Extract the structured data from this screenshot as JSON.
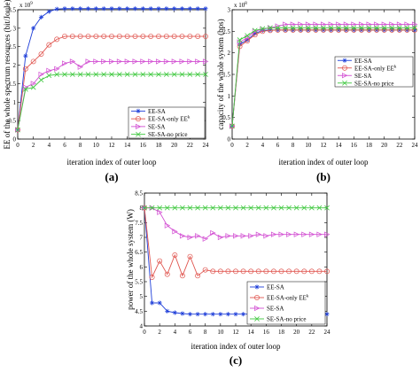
{
  "chart_data": [
    {
      "panel_label": "(a)",
      "type": "line",
      "xlabel": "iteration index of outer loop",
      "ylabel": "EE of the whole spectrum resources (bit/Joule)",
      "y_multiplier": "x 10",
      "y_exponent": "9",
      "xlim": [
        0,
        24
      ],
      "ylim": [
        0,
        3.5
      ],
      "xticks": [
        "0",
        "2",
        "4",
        "6",
        "8",
        "10",
        "12",
        "14",
        "16",
        "18",
        "20",
        "22",
        "24"
      ],
      "yticks": [
        "0",
        "0.5",
        "1",
        "1.5",
        "2",
        "2.5",
        "3",
        "3.5"
      ],
      "legend_location": "lower-right",
      "x": [
        0,
        1,
        2,
        3,
        4,
        5,
        6,
        7,
        8,
        9,
        10,
        11,
        12,
        13,
        14,
        15,
        16,
        17,
        18,
        19,
        20,
        21,
        22,
        23,
        24
      ],
      "series": [
        {
          "name": "EE-SA",
          "color": "#1f3fd9",
          "marker": "star",
          "values": [
            0.25,
            2.25,
            3.0,
            3.3,
            3.45,
            3.52,
            3.53,
            3.53,
            3.53,
            3.53,
            3.53,
            3.53,
            3.53,
            3.53,
            3.53,
            3.53,
            3.53,
            3.53,
            3.53,
            3.53,
            3.53,
            3.53,
            3.53,
            3.53,
            3.53
          ]
        },
        {
          "name": "EE-SA-only EE",
          "name_superscript": "k",
          "color": "#e0554f",
          "marker": "circle",
          "values": [
            0.25,
            1.9,
            2.1,
            2.3,
            2.55,
            2.7,
            2.78,
            2.78,
            2.78,
            2.78,
            2.78,
            2.78,
            2.78,
            2.78,
            2.78,
            2.78,
            2.78,
            2.78,
            2.78,
            2.78,
            2.78,
            2.78,
            2.78,
            2.78,
            2.78
          ]
        },
        {
          "name": "SE-SA",
          "color": "#d24fd2",
          "marker": "triangle-right",
          "values": [
            0.25,
            1.4,
            1.5,
            1.75,
            1.85,
            1.9,
            2.05,
            2.1,
            1.95,
            2.1,
            2.1,
            2.1,
            2.1,
            2.1,
            2.1,
            2.1,
            2.1,
            2.1,
            2.1,
            2.1,
            2.1,
            2.1,
            2.1,
            2.1,
            2.1
          ]
        },
        {
          "name": "SE-SA-no price",
          "color": "#3fc83f",
          "marker": "x",
          "values": [
            0.25,
            1.35,
            1.4,
            1.6,
            1.72,
            1.75,
            1.75,
            1.75,
            1.75,
            1.75,
            1.75,
            1.75,
            1.75,
            1.75,
            1.75,
            1.75,
            1.75,
            1.75,
            1.75,
            1.75,
            1.75,
            1.75,
            1.75,
            1.75,
            1.75
          ]
        }
      ]
    },
    {
      "panel_label": "(b)",
      "type": "line",
      "xlabel": "iteration index of outer loop",
      "ylabel": "capacity of the whole system (bps)",
      "y_multiplier": "x 10",
      "y_exponent": "8",
      "xlim": [
        0,
        24
      ],
      "ylim": [
        0,
        3
      ],
      "xticks": [
        "0",
        "2",
        "4",
        "6",
        "8",
        "10",
        "12",
        "14",
        "16",
        "18",
        "20",
        "22",
        "24"
      ],
      "yticks": [
        "0",
        "0.5",
        "1",
        "1.5",
        "2",
        "2.5",
        "3"
      ],
      "legend_location": "center-right",
      "x": [
        0,
        1,
        2,
        3,
        4,
        5,
        6,
        7,
        8,
        9,
        10,
        11,
        12,
        13,
        14,
        15,
        16,
        17,
        18,
        19,
        20,
        21,
        22,
        23,
        24
      ],
      "series": [
        {
          "name": "EE-SA",
          "color": "#1f3fd9",
          "marker": "star",
          "values": [
            0.3,
            2.2,
            2.3,
            2.45,
            2.52,
            2.53,
            2.53,
            2.53,
            2.53,
            2.53,
            2.53,
            2.53,
            2.53,
            2.53,
            2.53,
            2.53,
            2.53,
            2.53,
            2.53,
            2.53,
            2.53,
            2.53,
            2.53,
            2.53,
            2.53
          ]
        },
        {
          "name": "EE-SA-only EE",
          "name_superscript": "k",
          "color": "#e0554f",
          "marker": "circle",
          "values": [
            0.3,
            2.15,
            2.28,
            2.42,
            2.5,
            2.52,
            2.53,
            2.53,
            2.53,
            2.53,
            2.53,
            2.53,
            2.53,
            2.53,
            2.53,
            2.53,
            2.53,
            2.53,
            2.53,
            2.53,
            2.53,
            2.53,
            2.53,
            2.53,
            2.53
          ]
        },
        {
          "name": "SE-SA",
          "color": "#d24fd2",
          "marker": "triangle-right",
          "values": [
            0.3,
            2.25,
            2.35,
            2.5,
            2.55,
            2.58,
            2.62,
            2.66,
            2.66,
            2.66,
            2.66,
            2.66,
            2.66,
            2.66,
            2.66,
            2.66,
            2.66,
            2.66,
            2.66,
            2.66,
            2.66,
            2.66,
            2.66,
            2.66,
            2.66
          ]
        },
        {
          "name": "SE-SA-no price",
          "color": "#3fc83f",
          "marker": "x",
          "values": [
            0.3,
            2.3,
            2.4,
            2.52,
            2.56,
            2.58,
            2.58,
            2.58,
            2.58,
            2.58,
            2.58,
            2.58,
            2.58,
            2.58,
            2.58,
            2.58,
            2.58,
            2.58,
            2.58,
            2.58,
            2.58,
            2.58,
            2.58,
            2.58,
            2.58
          ]
        }
      ]
    },
    {
      "panel_label": "(c)",
      "type": "line",
      "xlabel": "iteration index of outer loop",
      "ylabel": "power of the whole system (W)",
      "xlim": [
        0,
        24
      ],
      "ylim": [
        4,
        8.5
      ],
      "xticks": [
        "0",
        "2",
        "4",
        "6",
        "8",
        "10",
        "12",
        "14",
        "16",
        "18",
        "20",
        "22",
        "24"
      ],
      "yticks": [
        "4",
        "4.5",
        "5",
        "5.5",
        "6",
        "6.5",
        "7",
        "7.5",
        "8",
        "8.5"
      ],
      "legend_location": "lower-right",
      "x": [
        0,
        1,
        2,
        3,
        4,
        5,
        6,
        7,
        8,
        9,
        10,
        11,
        12,
        13,
        14,
        15,
        16,
        17,
        18,
        19,
        20,
        21,
        22,
        23,
        24
      ],
      "series": [
        {
          "name": "EE-SA",
          "color": "#1f3fd9",
          "marker": "star",
          "values": [
            8.0,
            4.78,
            4.78,
            4.5,
            4.45,
            4.42,
            4.4,
            4.4,
            4.4,
            4.4,
            4.4,
            4.4,
            4.4,
            4.4,
            4.4,
            4.4,
            4.4,
            4.4,
            4.4,
            4.4,
            4.4,
            4.4,
            4.4,
            4.4,
            4.4
          ]
        },
        {
          "name": "EE-SA-only EE",
          "name_superscript": "k",
          "color": "#e0554f",
          "marker": "circle",
          "values": [
            8.0,
            5.65,
            6.2,
            5.75,
            6.4,
            5.7,
            6.35,
            5.7,
            5.9,
            5.85,
            5.85,
            5.85,
            5.85,
            5.85,
            5.85,
            5.85,
            5.85,
            5.85,
            5.85,
            5.85,
            5.85,
            5.85,
            5.85,
            5.85,
            5.85
          ]
        },
        {
          "name": "SE-SA",
          "color": "#d24fd2",
          "marker": "triangle-right",
          "values": [
            8.0,
            8.0,
            7.85,
            7.4,
            7.2,
            7.05,
            7.0,
            7.05,
            6.95,
            7.15,
            7.0,
            7.05,
            7.05,
            7.05,
            7.05,
            7.1,
            7.05,
            7.1,
            7.1,
            7.1,
            7.1,
            7.1,
            7.1,
            7.1,
            7.1
          ]
        },
        {
          "name": "SE-SA-no price",
          "color": "#3fc83f",
          "marker": "x",
          "values": [
            8.0,
            8.0,
            8.0,
            8.0,
            8.0,
            8.0,
            8.0,
            8.0,
            8.0,
            8.0,
            8.0,
            8.0,
            8.0,
            8.0,
            8.0,
            8.0,
            8.0,
            8.0,
            8.0,
            8.0,
            8.0,
            8.0,
            8.0,
            8.0,
            8.0
          ]
        }
      ]
    }
  ]
}
